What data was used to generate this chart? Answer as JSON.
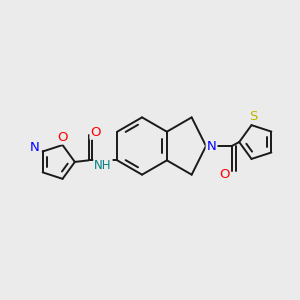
{
  "background_color": "#ebebeb",
  "bond_color": "#1a1a1a",
  "bond_width": 1.4,
  "atom_colors": {
    "O": "#ff0000",
    "N": "#0000ff",
    "S": "#b8b800",
    "NH": "#008080"
  },
  "font_size": 8.5,
  "fig_width": 3.0,
  "fig_height": 3.0,
  "dpi": 100
}
